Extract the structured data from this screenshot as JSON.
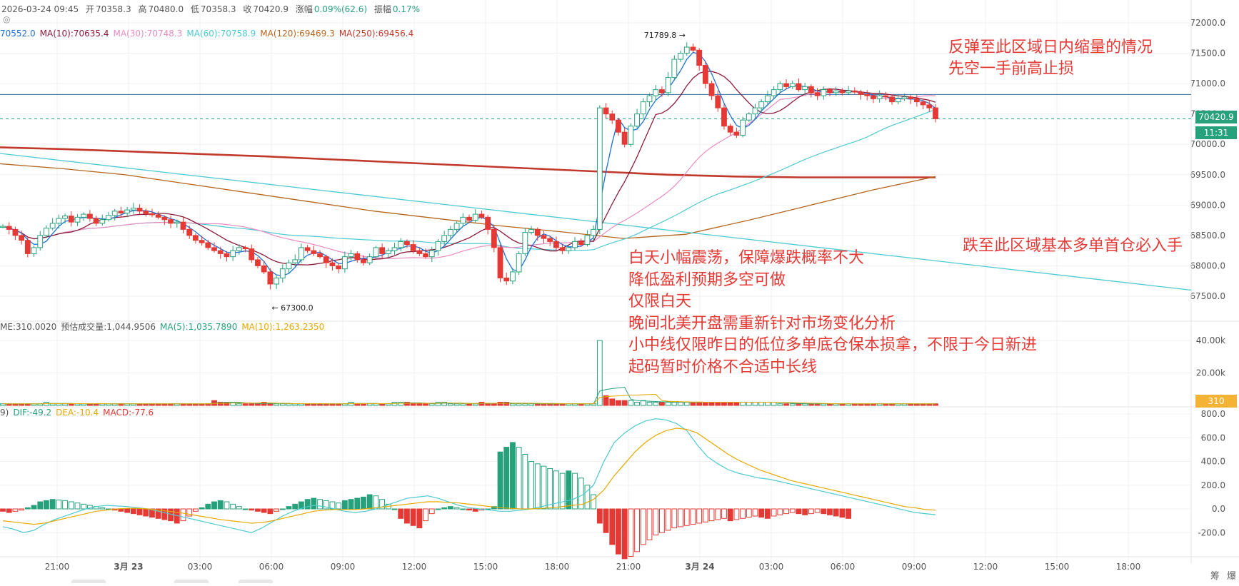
{
  "header": {
    "datetime": "2026-03-24 09:45",
    "open_label": "开",
    "open": "70358.3",
    "high_label": "高",
    "high": "70480.0",
    "low_label": "低",
    "low": "70358.3",
    "close_label": "收",
    "close": "70420.9",
    "change_label": "涨幅",
    "change": "0.09%(62.6)",
    "amp_label": "振幅",
    "amp": "0.17%"
  },
  "ma_legend": [
    {
      "text": "70552.0",
      "color": "#1e6fd9"
    },
    {
      "text": "MA(10):70635.4",
      "color": "#8b1a3a"
    },
    {
      "text": "MA(30):70748.3",
      "color": "#e98bbf"
    },
    {
      "text": "MA(60):70758.9",
      "color": "#4ccad1"
    },
    {
      "text": "MA(120):69469.3",
      "color": "#b5651d"
    },
    {
      "text": "MA(250):69456.4",
      "color": "#c0392b"
    }
  ],
  "volume_legend": [
    {
      "text": "ME:310.0020",
      "color": "#555555"
    },
    {
      "text": "预估成交量:1,044.9506",
      "color": "#555555"
    },
    {
      "text": "MA(5):1,035.7890",
      "color": "#26a17b"
    },
    {
      "text": "MA(10):1,263.2350",
      "color": "#e6a800"
    }
  ],
  "macd_legend": [
    {
      "text": "9)",
      "color": "#555555"
    },
    {
      "text": "DIF:-49.2",
      "color": "#26a17b"
    },
    {
      "text": "DEA:-10.4",
      "color": "#e6a800"
    },
    {
      "text": "MACD:-77.6",
      "color": "#e53935"
    }
  ],
  "annotations": {
    "top_right_1": "反弹至此区域日内缩量的情况",
    "top_right_2": "先空一手前高止损",
    "mid_right": "跌至此区域基本多单首仓必入手",
    "center_lines": [
      "白天小幅震荡，保障爆跌概率不大",
      "降低盈利预期多空可做",
      "仅限白天",
      "晚间北美开盘需重新针对市场变化分析",
      "小中线仅限昨日的低位多单底仓保本损拿，不限于今日新进",
      "起码暂时价格不合适中长线"
    ]
  },
  "price_tags": {
    "last_price": "70420.9",
    "countdown": "11:31",
    "volume": "310"
  },
  "bottom_right_icons": [
    "筹",
    "爆"
  ],
  "colors": {
    "up": "#26a17b",
    "down": "#e53935",
    "grid": "#f0f0f0",
    "annotation": "#e53935"
  },
  "chart_data": {
    "type": "candlestick",
    "price_axis": {
      "min": 67300,
      "max": 72000,
      "ticks": [
        "72000.0",
        "71500.0",
        "71000.0",
        "70500.0",
        "70000.0",
        "69500.0",
        "69000.0",
        "68500.0",
        "68000.0",
        "67500.0"
      ]
    },
    "volume_axis": {
      "ticks": [
        "40.00k",
        "20.00k"
      ]
    },
    "macd_axis": {
      "ticks": [
        "800.0",
        "600.0",
        "400.0",
        "200.0",
        "0.0",
        "-200.0"
      ]
    },
    "time_axis_ticks": [
      "21:00",
      "3月 23",
      "03:00",
      "06:00",
      "09:00",
      "12:00",
      "15:00",
      "18:00",
      "21:00",
      "3月 24",
      "03:00",
      "06:00",
      "09:00",
      "12:00",
      "15:00",
      "18:00"
    ],
    "marked_high": {
      "label": "71789.8",
      "value": 71789.8
    },
    "marked_low": {
      "label": "67300.0",
      "value": 67300.0
    },
    "horizontal_line": 70820,
    "last_price_line": 70420.9,
    "trendline": [
      {
        "bar": 0,
        "value": 69850
      },
      {
        "bar": 165,
        "value": 67600
      }
    ],
    "ma250": [
      69950,
      69920,
      69880,
      69840,
      69800,
      69750,
      69700,
      69650,
      69600,
      69550,
      69500,
      69470,
      69456,
      69456,
      69456
    ],
    "ma120": [
      69680,
      69600,
      69500,
      69350,
      69200,
      69050,
      68900,
      68780,
      68660,
      68560,
      68450,
      68520,
      68750,
      69000,
      69250,
      69470
    ],
    "closes": [
      68650,
      68600,
      68500,
      68420,
      68200,
      68300,
      68500,
      68620,
      68700,
      68780,
      68820,
      68720,
      68800,
      68850,
      68780,
      68700,
      68760,
      68830,
      68900,
      68870,
      68920,
      68950,
      68900,
      68860,
      68840,
      68800,
      68760,
      68700,
      68720,
      68600,
      68500,
      68420,
      68380,
      68300,
      68250,
      68200,
      68150,
      68250,
      68300,
      68280,
      68100,
      68000,
      67900,
      67700,
      67800,
      67950,
      68050,
      68100,
      68300,
      68250,
      68200,
      68150,
      68050,
      68000,
      67950,
      68150,
      68200,
      68100,
      68050,
      68150,
      68300,
      68200,
      68250,
      68300,
      68400,
      68350,
      68250,
      68200,
      68150,
      68250,
      68400,
      68500,
      68600,
      68700,
      68800,
      68750,
      68850,
      68800,
      68600,
      68300,
      67800,
      67750,
      67900,
      68200,
      68550,
      68600,
      68500,
      68450,
      68400,
      68300,
      68250,
      68300,
      68400,
      68350,
      68500,
      68600,
      70600,
      70500,
      70400,
      70200,
      70000,
      70300,
      70500,
      70700,
      70800,
      70900,
      70850,
      71100,
      71400,
      71500,
      71600,
      71550,
      71300,
      71000,
      70800,
      70600,
      70300,
      70200,
      70150,
      70400,
      70500,
      70600,
      70700,
      70800,
      70900,
      71000,
      70950,
      71000,
      70900,
      70950,
      70850,
      70800,
      70900,
      70850,
      70880,
      70850,
      70880,
      70860,
      70820,
      70800,
      70750,
      70800,
      70780,
      70700,
      70750,
      70780,
      70750,
      70700,
      70650,
      70600,
      70420
    ],
    "volumes": [
      1,
      1,
      1,
      1,
      1,
      1,
      1,
      2,
      1,
      1,
      1,
      1,
      1,
      1,
      1,
      1,
      1,
      1,
      1,
      1,
      1,
      1,
      1,
      1,
      1,
      1,
      1,
      1,
      1,
      1,
      1,
      1,
      1,
      1,
      3,
      2,
      2,
      2,
      1,
      1,
      1,
      1,
      2,
      1,
      1,
      1,
      1,
      1,
      1,
      1,
      1,
      1,
      1,
      1,
      1,
      1,
      2,
      1,
      1,
      1,
      1,
      1,
      1,
      2,
      2,
      2,
      1,
      1,
      1,
      1,
      2,
      2,
      1,
      1,
      1,
      1,
      1,
      2,
      1,
      1,
      2,
      2,
      1,
      1,
      1,
      1,
      1,
      1,
      1,
      1,
      1,
      1,
      1,
      1,
      1,
      1,
      40,
      6,
      4,
      3,
      3,
      3,
      2,
      3,
      2,
      2,
      2,
      2,
      2,
      2,
      2,
      2,
      2,
      2,
      2,
      2,
      2,
      2,
      2,
      2,
      2,
      2,
      2,
      2,
      2,
      1,
      1,
      1,
      1,
      1,
      1,
      1,
      1,
      1,
      1,
      1,
      1,
      1,
      1,
      1,
      1,
      1,
      1,
      1,
      1,
      1,
      1,
      1,
      1,
      1,
      1
    ],
    "macd_hist": [
      -20,
      -30,
      -20,
      -10,
      10,
      30,
      60,
      70,
      80,
      75,
      70,
      60,
      50,
      40,
      30,
      20,
      10,
      0,
      -10,
      -20,
      -30,
      -40,
      -50,
      -60,
      -70,
      -80,
      -90,
      -100,
      -120,
      -100,
      -60,
      -20,
      10,
      40,
      60,
      70,
      60,
      40,
      20,
      0,
      -10,
      -20,
      -30,
      -40,
      -20,
      0,
      20,
      40,
      60,
      80,
      90,
      80,
      70,
      60,
      50,
      70,
      80,
      90,
      100,
      120,
      110,
      80,
      40,
      0,
      -80,
      -120,
      -140,
      -160,
      -100,
      -40,
      0,
      10,
      20,
      10,
      0,
      -10,
      -20,
      -10,
      0,
      20,
      480,
      520,
      560,
      520,
      460,
      400,
      380,
      360,
      340,
      320,
      300,
      320,
      300,
      260,
      200,
      120,
      -120,
      -200,
      -300,
      -380,
      -420,
      -400,
      -360,
      -300,
      -260,
      -220,
      -200,
      -180,
      -160,
      -150,
      -140,
      -130,
      -120,
      -110,
      -100,
      -90,
      -80,
      -100,
      -90,
      -80,
      -70,
      -60,
      -70,
      -80,
      -60,
      -50,
      -40,
      -30,
      -40,
      -50,
      -40,
      -30,
      -40,
      -50,
      -60,
      -70,
      -80
    ],
    "dif": [
      -150,
      -170,
      -200,
      -180,
      -130,
      -90,
      -60,
      -30,
      0,
      20,
      30,
      25,
      20,
      10,
      0,
      -20,
      -40,
      -60,
      -80,
      -100,
      -120,
      -140,
      -160,
      -180,
      -200,
      -160,
      -110,
      -60,
      -20,
      10,
      30,
      20,
      0,
      -20,
      -30,
      -20,
      0,
      30,
      60,
      90,
      100,
      110,
      90,
      60,
      30,
      10,
      0,
      -10,
      -20,
      -20,
      -10,
      0,
      20,
      40,
      60,
      80,
      120,
      200,
      400,
      560,
      640,
      700,
      740,
      760,
      750,
      720,
      660,
      540,
      440,
      380,
      330,
      300,
      280,
      260,
      250,
      230,
      210,
      190,
      170,
      150,
      130,
      110,
      90,
      70,
      50,
      30,
      10,
      -10,
      -30,
      -40,
      -49
    ],
    "dea": [
      -100,
      -110,
      -120,
      -130,
      -120,
      -100,
      -80,
      -60,
      -40,
      -20,
      -10,
      0,
      5,
      5,
      0,
      -10,
      -20,
      -30,
      -45,
      -60,
      -75,
      -90,
      -100,
      -110,
      -120,
      -115,
      -100,
      -80,
      -60,
      -40,
      -20,
      -10,
      -5,
      -5,
      -5,
      0,
      10,
      20,
      30,
      40,
      50,
      60,
      60,
      55,
      50,
      40,
      30,
      20,
      10,
      5,
      0,
      0,
      5,
      10,
      20,
      30,
      40,
      80,
      160,
      280,
      380,
      480,
      560,
      620,
      660,
      680,
      670,
      640,
      580,
      520,
      460,
      410,
      370,
      330,
      300,
      270,
      240,
      220,
      200,
      180,
      160,
      140,
      120,
      100,
      80,
      60,
      40,
      20,
      10,
      -5,
      -10
    ]
  }
}
